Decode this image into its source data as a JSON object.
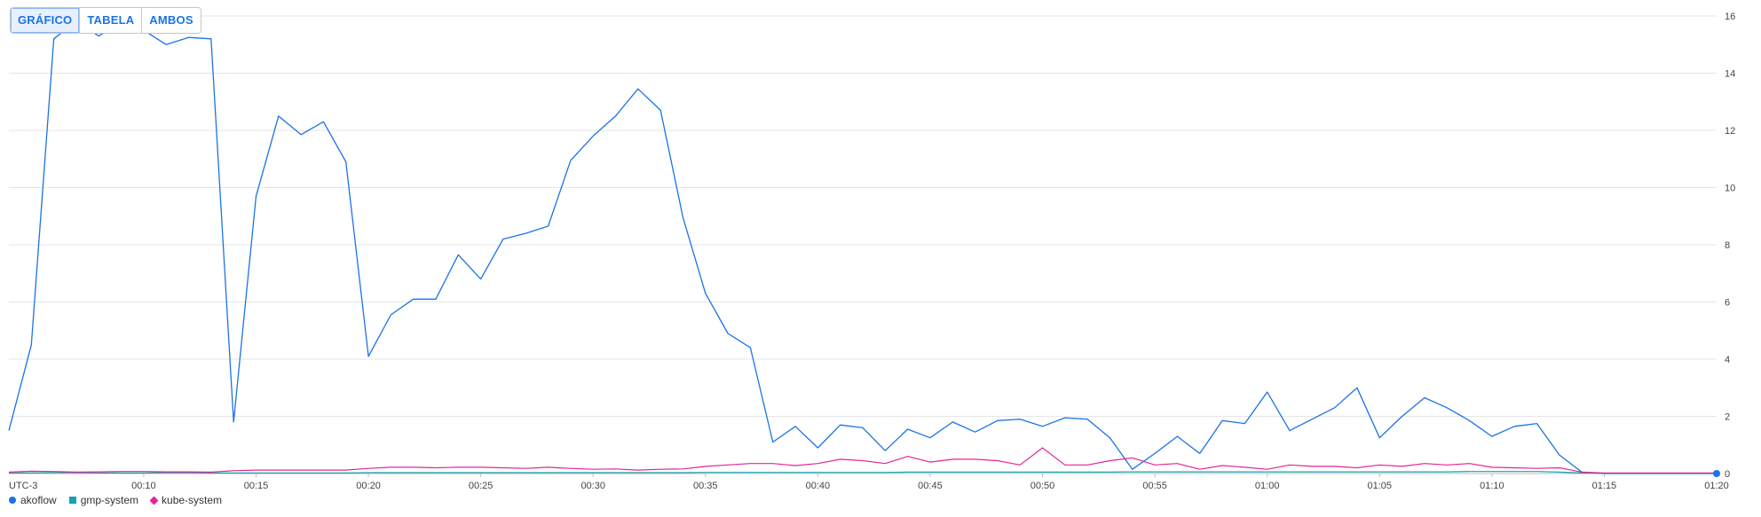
{
  "tabs": [
    {
      "label": "GRÁFICO",
      "active": true
    },
    {
      "label": "TABELA",
      "active": false
    },
    {
      "label": "AMBOS",
      "active": false
    }
  ],
  "timezone_label": "UTC-3",
  "colors": {
    "akoflow": "#1a73e8",
    "gmp-system": "#12a4af",
    "kube-system": "#e52592",
    "grid": "#e6e6e6"
  },
  "chart_data": {
    "type": "line",
    "x_unit": "minutes after 00:00 (UTC-3)",
    "xlim": [
      4,
      80
    ],
    "ylim": [
      0,
      16
    ],
    "yticks": [
      "0",
      "2",
      "4",
      "6",
      "8",
      "10",
      "12",
      "14",
      "16"
    ],
    "xticks": [
      "00:10",
      "00:15",
      "00:20",
      "00:25",
      "00:30",
      "00:35",
      "00:40",
      "00:45",
      "00:50",
      "00:55",
      "01:00",
      "01:05",
      "01:10",
      "01:15",
      "01:20"
    ],
    "x": [
      4,
      5,
      6,
      7,
      8,
      9,
      10,
      11,
      12,
      13,
      14,
      15,
      16,
      17,
      18,
      19,
      20,
      21,
      22,
      23,
      24,
      25,
      26,
      27,
      28,
      29,
      30,
      31,
      32,
      33,
      34,
      35,
      36,
      37,
      38,
      39,
      40,
      41,
      42,
      43,
      44,
      45,
      46,
      47,
      48,
      49,
      50,
      51,
      52,
      53,
      54,
      55,
      56,
      57,
      58,
      59,
      60,
      61,
      62,
      63,
      64,
      65,
      66,
      67,
      68,
      69,
      70,
      71,
      72,
      73,
      74,
      75,
      76,
      77,
      78,
      79,
      80
    ],
    "series": [
      {
        "name": "akoflow",
        "values": [
          1.5,
          4.5,
          15.2,
          15.8,
          15.3,
          15.8,
          15.5,
          15.0,
          15.25,
          15.2,
          1.8,
          9.7,
          12.5,
          11.85,
          12.3,
          10.9,
          4.1,
          5.55,
          6.1,
          6.1,
          7.65,
          6.8,
          8.2,
          8.4,
          8.65,
          10.95,
          11.8,
          12.5,
          13.45,
          12.7,
          8.95,
          6.3,
          4.9,
          4.4,
          1.1,
          1.65,
          0.9,
          1.7,
          1.6,
          0.8,
          1.55,
          1.25,
          1.8,
          1.45,
          1.85,
          1.9,
          1.65,
          1.95,
          1.9,
          1.25,
          0.15,
          0.7,
          1.3,
          0.7,
          1.85,
          1.75,
          2.85,
          1.5,
          1.9,
          2.3,
          3.0,
          1.25,
          2.0,
          2.65,
          2.3,
          1.85,
          1.3,
          1.65,
          1.75,
          0.65,
          0.05,
          0.0,
          0.0,
          0.0,
          0.0,
          0.0,
          0.0
        ]
      },
      {
        "name": "gmp-system",
        "values": [
          0.02,
          0.02,
          0.03,
          0.03,
          0.02,
          0.02,
          0.02,
          0.03,
          0.03,
          0.02,
          0.02,
          0.02,
          0.02,
          0.02,
          0.02,
          0.02,
          0.03,
          0.03,
          0.03,
          0.03,
          0.03,
          0.03,
          0.03,
          0.03,
          0.03,
          0.03,
          0.03,
          0.03,
          0.03,
          0.03,
          0.03,
          0.04,
          0.04,
          0.04,
          0.04,
          0.04,
          0.04,
          0.04,
          0.04,
          0.04,
          0.05,
          0.05,
          0.05,
          0.05,
          0.05,
          0.05,
          0.05,
          0.05,
          0.05,
          0.05,
          0.06,
          0.06,
          0.06,
          0.06,
          0.06,
          0.06,
          0.06,
          0.06,
          0.06,
          0.06,
          0.06,
          0.06,
          0.06,
          0.06,
          0.06,
          0.07,
          0.07,
          0.07,
          0.07,
          0.05,
          0.02,
          0.01,
          0.01,
          0.01,
          0.01,
          0.01,
          0.01
        ]
      },
      {
        "name": "kube-system",
        "values": [
          0.05,
          0.08,
          0.07,
          0.05,
          0.06,
          0.07,
          0.07,
          0.06,
          0.06,
          0.05,
          0.1,
          0.12,
          0.12,
          0.12,
          0.12,
          0.12,
          0.18,
          0.22,
          0.22,
          0.2,
          0.22,
          0.22,
          0.2,
          0.18,
          0.22,
          0.18,
          0.15,
          0.16,
          0.12,
          0.15,
          0.16,
          0.25,
          0.3,
          0.35,
          0.35,
          0.28,
          0.35,
          0.5,
          0.45,
          0.35,
          0.6,
          0.4,
          0.5,
          0.5,
          0.45,
          0.3,
          0.9,
          0.3,
          0.3,
          0.45,
          0.55,
          0.3,
          0.35,
          0.15,
          0.28,
          0.22,
          0.15,
          0.3,
          0.25,
          0.25,
          0.2,
          0.3,
          0.25,
          0.35,
          0.3,
          0.35,
          0.22,
          0.2,
          0.18,
          0.2,
          0.05,
          0.02,
          0.02,
          0.02,
          0.02,
          0.02,
          0.02
        ]
      }
    ],
    "legend_position": "bottom-left",
    "grid": true
  }
}
